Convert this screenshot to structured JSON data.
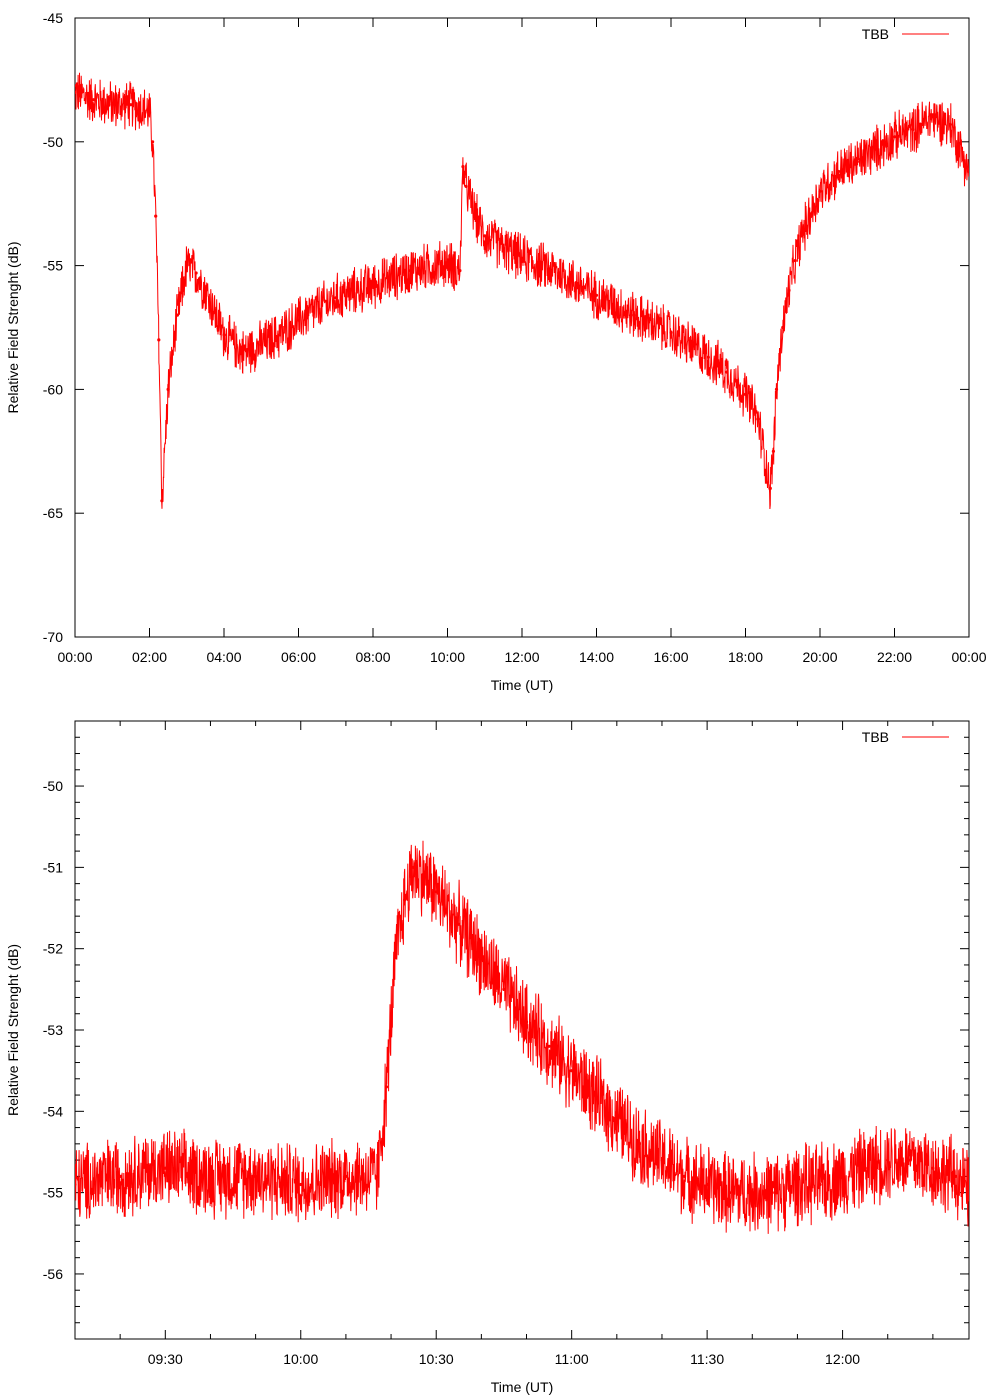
{
  "chart_data": [
    {
      "type": "line",
      "xlabel": "Time (UT)",
      "ylabel": "Relative Field Strenght (dB)",
      "xlim": [
        "00:00",
        "24:00"
      ],
      "ylim": [
        -70,
        -45
      ],
      "x_ticks": [
        "00:00",
        "02:00",
        "04:00",
        "06:00",
        "08:00",
        "10:00",
        "12:00",
        "14:00",
        "16:00",
        "18:00",
        "20:00",
        "22:00",
        "00:00"
      ],
      "y_ticks": [
        -45,
        -50,
        -55,
        -60,
        -65,
        -70
      ],
      "grid": false,
      "legend": "top-right",
      "series": [
        {
          "name": "TBB",
          "color": "#ff0000",
          "x": [
            "00:00",
            "00:30",
            "01:00",
            "01:30",
            "02:00",
            "02:05",
            "02:10",
            "02:15",
            "02:20",
            "02:30",
            "02:45",
            "03:00",
            "03:15",
            "03:30",
            "04:00",
            "04:30",
            "05:00",
            "05:30",
            "06:00",
            "07:00",
            "08:00",
            "09:00",
            "10:00",
            "10:20",
            "10:25",
            "10:30",
            "10:45",
            "11:00",
            "11:30",
            "12:00",
            "13:00",
            "14:00",
            "15:00",
            "16:00",
            "17:00",
            "17:30",
            "18:00",
            "18:20",
            "18:40",
            "18:45",
            "18:50",
            "19:00",
            "19:10",
            "19:20",
            "19:30",
            "20:00",
            "20:30",
            "21:00",
            "21:30",
            "22:00",
            "22:30",
            "23:00",
            "23:30",
            "24:00"
          ],
          "values": [
            -48,
            -48.3,
            -48.5,
            -48.5,
            -48.8,
            -50,
            -53,
            -58,
            -64.5,
            -60,
            -57,
            -55,
            -55.3,
            -56,
            -57.8,
            -58.5,
            -58.2,
            -57.8,
            -57.2,
            -56.3,
            -55.8,
            -55.2,
            -54.9,
            -55.2,
            -51,
            -51.8,
            -53,
            -53.8,
            -54.3,
            -54.7,
            -55.3,
            -56.2,
            -57,
            -57.7,
            -58.7,
            -59.3,
            -60.2,
            -61.2,
            -64,
            -62.5,
            -60,
            -57.5,
            -56,
            -54.8,
            -53.8,
            -52,
            -51.2,
            -50.8,
            -50.3,
            -49.8,
            -49.5,
            -49,
            -49.3,
            -51.2
          ]
        }
      ]
    },
    {
      "type": "line",
      "xlabel": "Time (UT)",
      "ylabel": "Relative Field Strenght (dB)",
      "xlim": [
        "09:10",
        "12:28"
      ],
      "ylim": [
        -56.8,
        -49.2
      ],
      "x_ticks": [
        "09:30",
        "10:00",
        "10:30",
        "11:00",
        "11:30",
        "12:00"
      ],
      "y_ticks": [
        -50,
        -51,
        -52,
        -53,
        -54,
        -55,
        -56
      ],
      "grid": false,
      "legend": "top-right",
      "series": [
        {
          "name": "TBB",
          "color": "#ff0000",
          "x": [
            "09:10",
            "09:20",
            "09:30",
            "09:40",
            "09:50",
            "10:00",
            "10:10",
            "10:17",
            "10:19",
            "10:21",
            "10:23",
            "10:25",
            "10:27",
            "10:30",
            "10:35",
            "10:40",
            "10:45",
            "10:50",
            "10:55",
            "11:00",
            "11:05",
            "11:10",
            "11:15",
            "11:20",
            "11:25",
            "11:30",
            "11:35",
            "11:40",
            "11:45",
            "11:50",
            "11:55",
            "12:00",
            "12:05",
            "12:10",
            "12:15",
            "12:20",
            "12:25",
            "12:28"
          ],
          "values": [
            -54.9,
            -54.8,
            -54.7,
            -54.8,
            -54.8,
            -54.9,
            -54.8,
            -54.8,
            -53.7,
            -52.1,
            -51.4,
            -51.0,
            -51.1,
            -51.3,
            -51.7,
            -52.1,
            -52.5,
            -52.9,
            -53.2,
            -53.5,
            -53.8,
            -54.1,
            -54.4,
            -54.6,
            -54.8,
            -54.9,
            -55.0,
            -55.0,
            -55.0,
            -54.9,
            -54.9,
            -54.8,
            -54.7,
            -54.6,
            -54.6,
            -54.7,
            -54.8,
            -55.0
          ]
        }
      ]
    }
  ]
}
